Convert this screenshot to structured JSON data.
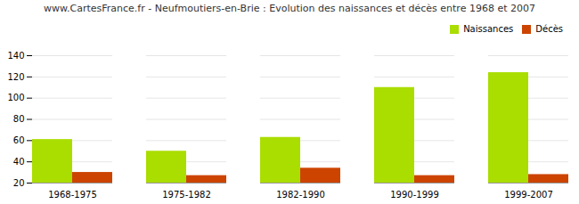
{
  "chart_data": {
    "type": "bar",
    "title": "www.CartesFrance.fr - Neufmoutiers-en-Brie : Evolution des naissances et décès entre 1968 et 2007",
    "categories": [
      "1968-1975",
      "1975-1982",
      "1982-1990",
      "1990-1999",
      "1999-2007"
    ],
    "series": [
      {
        "name": "Naissances",
        "color": "#aadd00",
        "values": [
          61,
          50,
          63,
          110,
          124
        ]
      },
      {
        "name": "Décès",
        "color": "#cc4400",
        "values": [
          30,
          27,
          34,
          27,
          28
        ]
      }
    ],
    "ylim": [
      20,
      140
    ],
    "yticks": [
      20,
      40,
      60,
      80,
      100,
      120,
      140
    ],
    "grid": true,
    "legend": "upper right"
  }
}
